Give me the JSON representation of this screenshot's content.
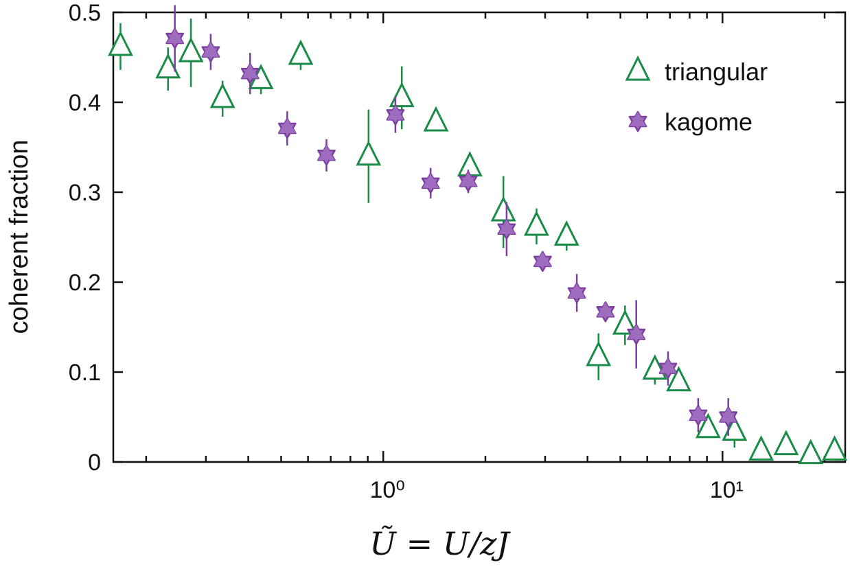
{
  "chart_data": {
    "type": "scatter",
    "title": "",
    "xlabel": "Ũ = U/zJ",
    "ylabel": "coherent fraction",
    "xscale": "log",
    "xlim": [
      0.16,
      23
    ],
    "ylim": [
      0,
      0.5
    ],
    "x_ticks": [
      {
        "value": 1,
        "label": "10⁰"
      },
      {
        "value": 10,
        "label": "10¹"
      }
    ],
    "y_ticks": [
      {
        "value": 0,
        "label": "0"
      },
      {
        "value": 0.1,
        "label": "0.1"
      },
      {
        "value": 0.2,
        "label": "0.2"
      },
      {
        "value": 0.3,
        "label": "0.3"
      },
      {
        "value": 0.4,
        "label": "0.4"
      },
      {
        "value": 0.5,
        "label": "0.5"
      }
    ],
    "legend_position": "top-right",
    "grid": false,
    "series": [
      {
        "name": "triangular",
        "marker": "open-triangle",
        "color": "#1a8a47",
        "points": [
          {
            "x": 0.168,
            "y": 0.462,
            "err": 0.026
          },
          {
            "x": 0.232,
            "y": 0.437,
            "err": 0.024
          },
          {
            "x": 0.271,
            "y": 0.455,
            "err": 0.038
          },
          {
            "x": 0.336,
            "y": 0.404,
            "err": 0.02
          },
          {
            "x": 0.436,
            "y": 0.425,
            "err": 0.016
          },
          {
            "x": 0.571,
            "y": 0.452,
            "err": 0.016
          },
          {
            "x": 0.905,
            "y": 0.34,
            "err": 0.052
          },
          {
            "x": 1.134,
            "y": 0.405,
            "err": 0.035
          },
          {
            "x": 1.43,
            "y": 0.378,
            "err": 0.01
          },
          {
            "x": 1.8,
            "y": 0.328,
            "err": 0.01
          },
          {
            "x": 2.26,
            "y": 0.278,
            "err": 0.04
          },
          {
            "x": 2.83,
            "y": 0.262,
            "err": 0.02
          },
          {
            "x": 3.47,
            "y": 0.251,
            "err": 0.016
          },
          {
            "x": 4.31,
            "y": 0.117,
            "err": 0.026
          },
          {
            "x": 5.16,
            "y": 0.152,
            "err": 0.022
          },
          {
            "x": 6.32,
            "y": 0.102,
            "err": 0.016
          },
          {
            "x": 7.43,
            "y": 0.089,
            "err": 0.006
          },
          {
            "x": 9.07,
            "y": 0.037,
            "err": 0.006
          },
          {
            "x": 10.85,
            "y": 0.034,
            "err": 0.018
          },
          {
            "x": 13.0,
            "y": 0.012,
            "err": 0.006
          },
          {
            "x": 15.4,
            "y": 0.018,
            "err": 0.006
          },
          {
            "x": 18.2,
            "y": 0.008,
            "err": 0.006
          },
          {
            "x": 21.4,
            "y": 0.012,
            "err": 0.006
          }
        ]
      },
      {
        "name": "kagome",
        "marker": "star",
        "color": "#7b3fa0",
        "points": [
          {
            "x": 0.243,
            "y": 0.471,
            "err": 0.037
          },
          {
            "x": 0.31,
            "y": 0.456,
            "err": 0.02
          },
          {
            "x": 0.405,
            "y": 0.432,
            "err": 0.023
          },
          {
            "x": 0.521,
            "y": 0.371,
            "err": 0.019
          },
          {
            "x": 0.68,
            "y": 0.341,
            "err": 0.018
          },
          {
            "x": 1.086,
            "y": 0.386,
            "err": 0.02
          },
          {
            "x": 1.379,
            "y": 0.31,
            "err": 0.017
          },
          {
            "x": 1.78,
            "y": 0.312,
            "err": 0.013
          },
          {
            "x": 2.31,
            "y": 0.259,
            "err": 0.03
          },
          {
            "x": 2.95,
            "y": 0.223,
            "err": 0.01
          },
          {
            "x": 3.72,
            "y": 0.188,
            "err": 0.021
          },
          {
            "x": 4.52,
            "y": 0.167,
            "err": 0.01
          },
          {
            "x": 5.57,
            "y": 0.142,
            "err": 0.038
          },
          {
            "x": 6.91,
            "y": 0.104,
            "err": 0.019
          },
          {
            "x": 8.48,
            "y": 0.052,
            "err": 0.019
          },
          {
            "x": 10.4,
            "y": 0.05,
            "err": 0.021
          }
        ]
      }
    ]
  }
}
